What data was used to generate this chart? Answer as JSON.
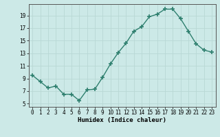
{
  "x": [
    0,
    1,
    2,
    3,
    4,
    5,
    6,
    7,
    8,
    9,
    10,
    11,
    12,
    13,
    14,
    15,
    16,
    17,
    18,
    19,
    20,
    21,
    22,
    23
  ],
  "y": [
    9.5,
    8.5,
    7.5,
    7.8,
    6.5,
    6.5,
    5.5,
    7.2,
    7.3,
    9.2,
    11.3,
    13.1,
    14.6,
    16.5,
    17.2,
    18.8,
    19.2,
    20.0,
    20.0,
    18.5,
    16.5,
    14.5,
    13.5,
    13.2
  ],
  "line_color": "#2e7f6e",
  "marker": "+",
  "marker_size": 4,
  "marker_lw": 1.2,
  "bg_color": "#cce9e7",
  "grid_color": "#b8d8d5",
  "xlabel": "Humidex (Indice chaleur)",
  "yticks": [
    5,
    7,
    9,
    11,
    13,
    15,
    17,
    19
  ],
  "ylim": [
    4.5,
    20.8
  ],
  "xlim": [
    -0.5,
    23.5
  ],
  "tick_fontsize": 5.5,
  "xlabel_fontsize": 6.5
}
